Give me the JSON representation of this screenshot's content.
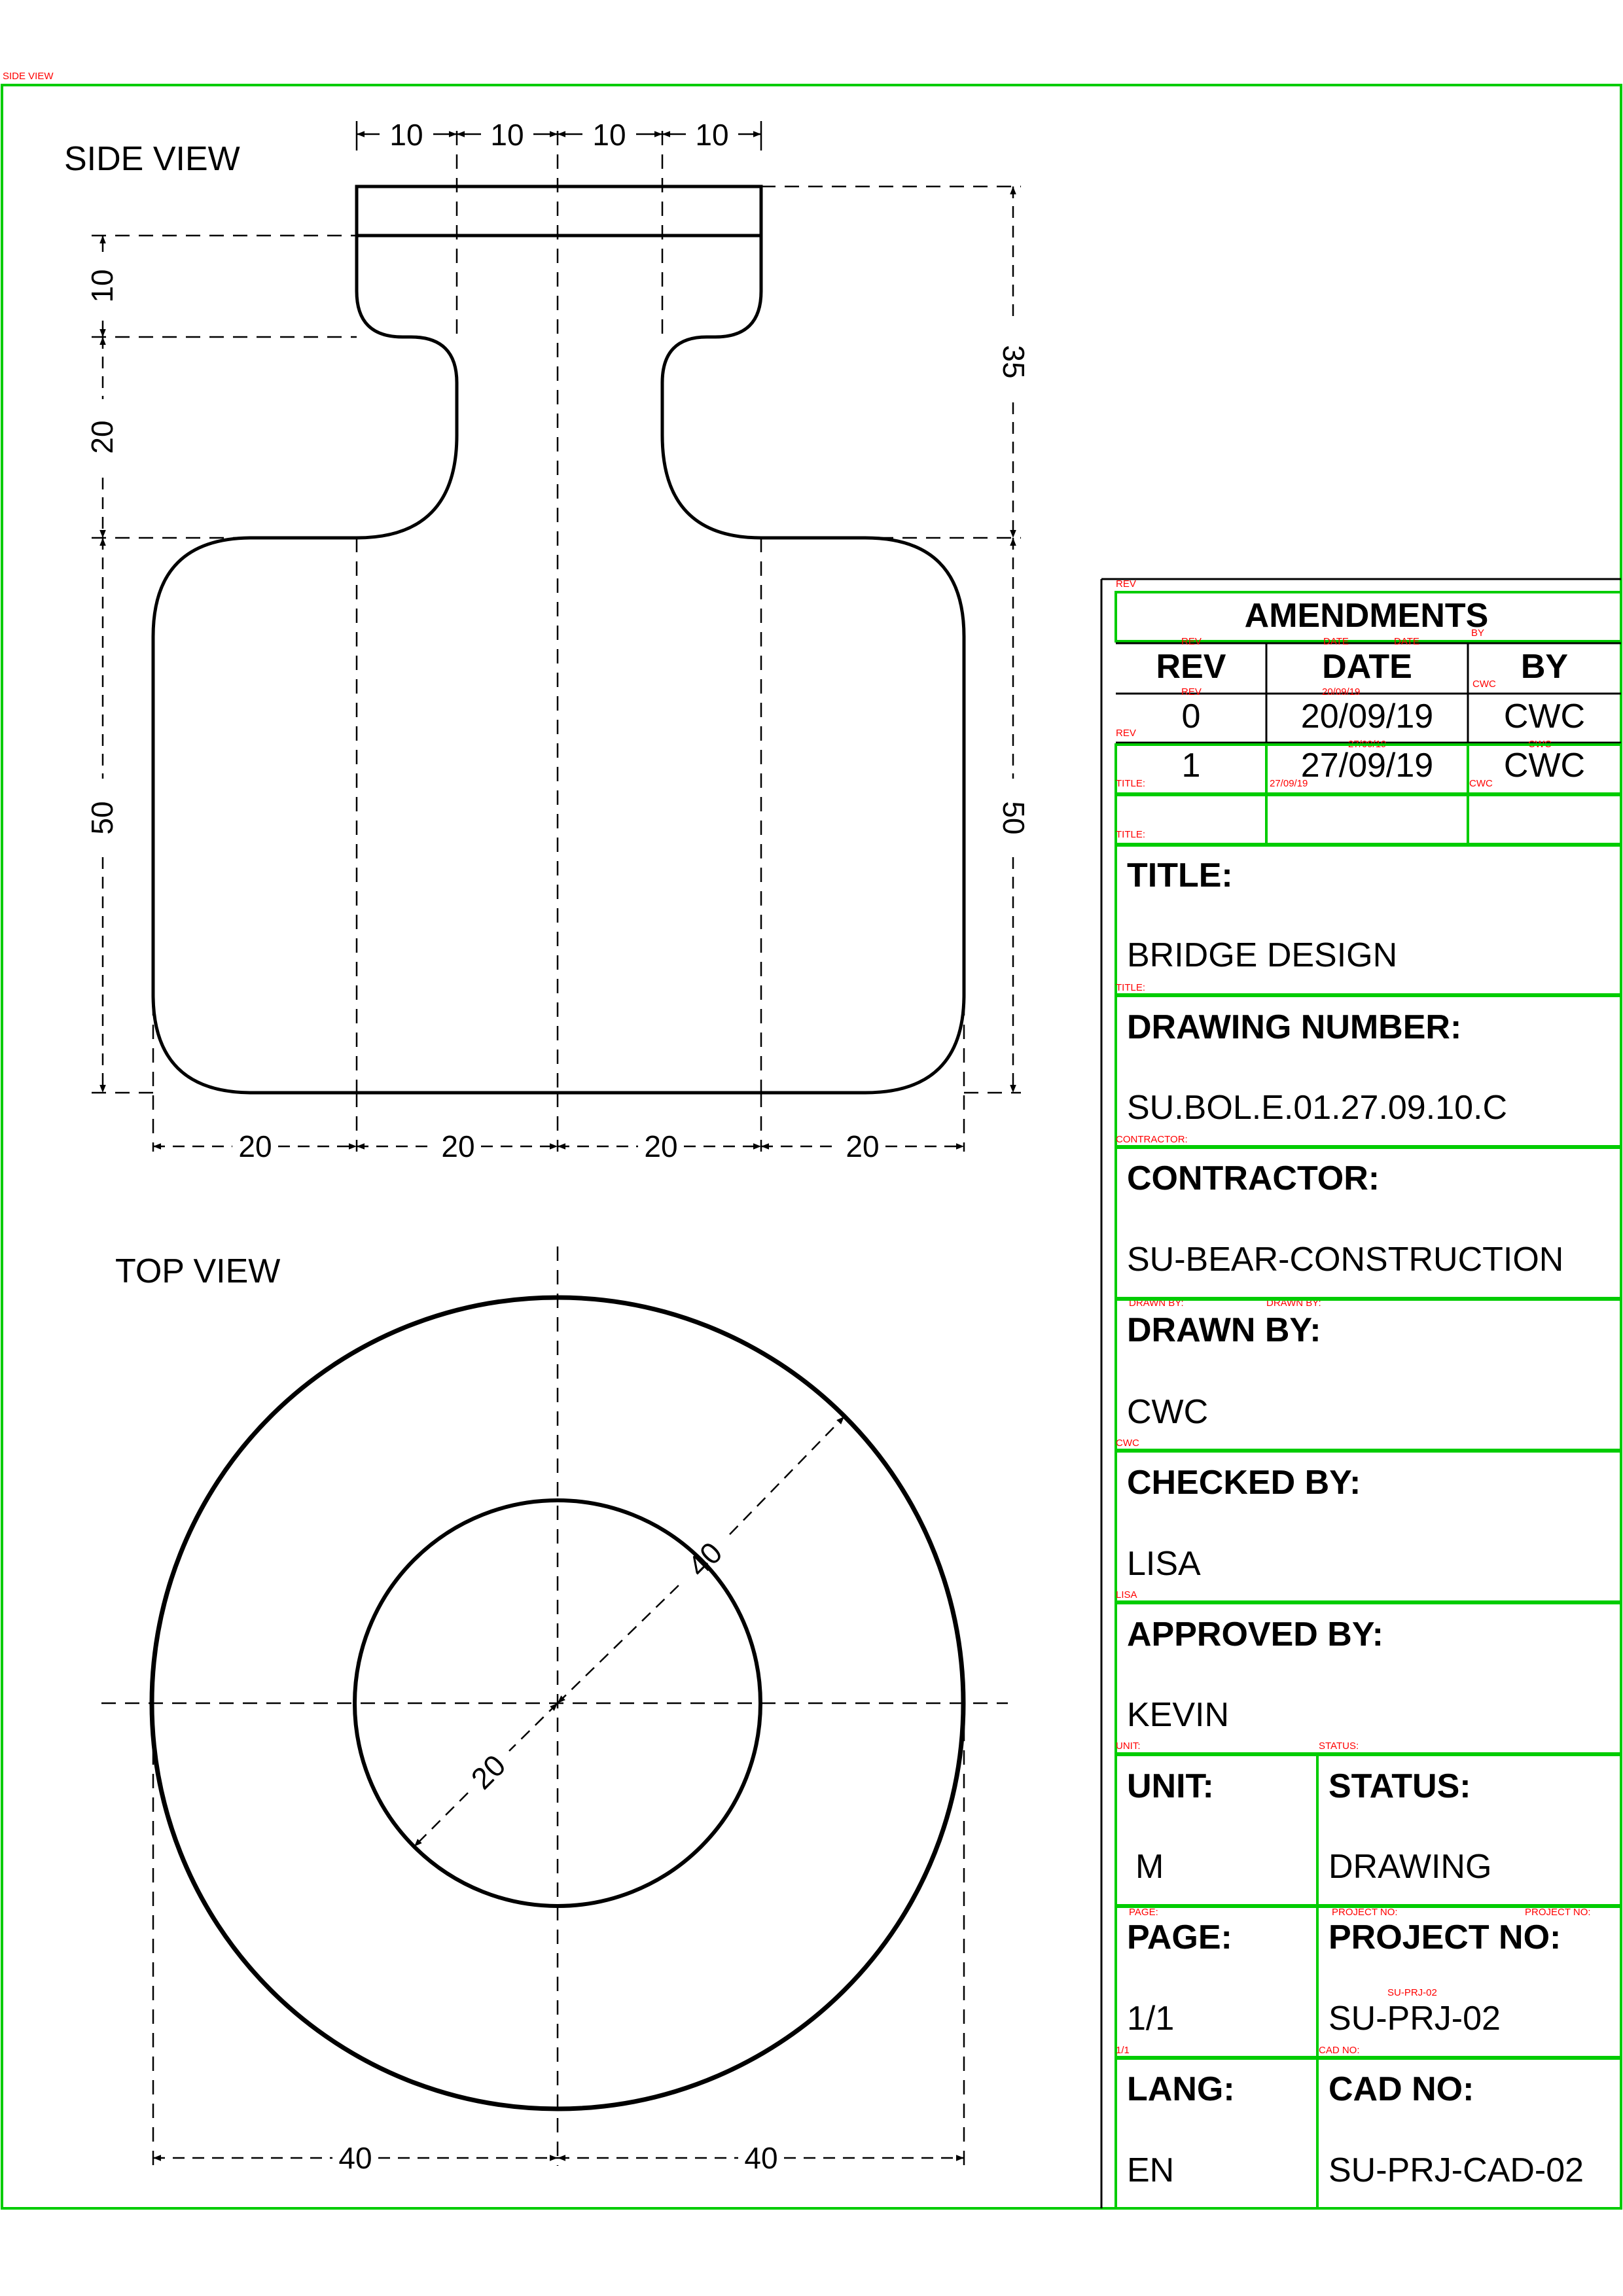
{
  "colors": {
    "line": "#000000",
    "annotation_red": "#ff0000",
    "annotation_green": "#00cc00"
  },
  "side_view": {
    "label": "SIDE VIEW",
    "dims_top": [
      "10",
      "10",
      "10",
      "10"
    ],
    "dims_left": [
      "10",
      "20",
      "50"
    ],
    "dims_right": [
      "35",
      "50"
    ],
    "dims_bottom": [
      "20",
      "20",
      "20",
      "20"
    ]
  },
  "top_view": {
    "label": "TOP VIEW",
    "dim_outer_radius": "40",
    "dim_inner_radius": "20",
    "dims_bottom": [
      "40",
      "40"
    ]
  },
  "amendments": {
    "heading": "AMENDMENTS",
    "col_rev": "REV",
    "col_date": "DATE",
    "col_by": "BY",
    "rows": [
      {
        "rev": "0",
        "date": "20/09/19",
        "by": "CWC"
      },
      {
        "rev": "1",
        "date": "27/09/19",
        "by": "CWC"
      },
      {
        "rev": "",
        "date": "",
        "by": ""
      }
    ]
  },
  "title_block": {
    "title_label": "TITLE:",
    "title_value": "BRIDGE DESIGN",
    "drawing_number_label": "DRAWING NUMBER:",
    "drawing_number_value": "SU.BOL.E.01.27.09.10.C",
    "contractor_label": "CONTRACTOR:",
    "contractor_value": "SU-BEAR-CONSTRUCTION",
    "drawn_by_label": "DRAWN BY:",
    "drawn_by_value": "CWC",
    "checked_by_label": "CHECKED BY:",
    "checked_by_value": "LISA",
    "approved_by_label": "APPROVED BY:",
    "approved_by_value": "KEVIN",
    "unit_label": "UNIT:",
    "unit_value": "M",
    "status_label": "STATUS:",
    "status_value": "DRAWING",
    "page_label": "PAGE:",
    "page_value": "1/1",
    "project_no_label": "PROJECT NO:",
    "project_no_value": "SU-PRJ-02",
    "lang_label": "LANG:",
    "lang_value": "EN",
    "cad_no_label": "CAD NO:",
    "cad_no_value": "SU-PRJ-CAD-02"
  },
  "overlay_labels": {
    "side_view": "SIDE VIEW",
    "rev": "REV",
    "by": "BY",
    "date": "DATE",
    "title": "TITLE:",
    "cwc": "CWC",
    "contractor": "CONTRACTOR:",
    "drawn_by": "DRAWN BY:",
    "lisa": "LISA",
    "unit": "UNIT:",
    "status": "STATUS:",
    "page": "PAGE:",
    "project_no": "PROJECT NO:",
    "project_value": "SU-PRJ-02",
    "page_value": "1/1",
    "cad_no": "CAD NO:",
    "date_value_0": "20/09/19",
    "date_value_1": "27/09/19"
  }
}
